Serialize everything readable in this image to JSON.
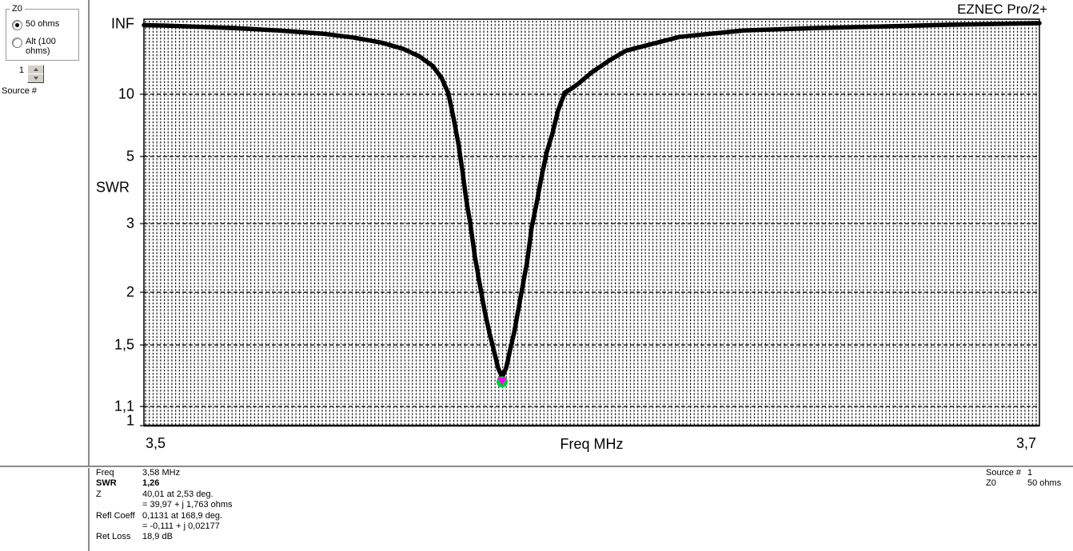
{
  "brand": {
    "title": "EZNEC Pro/2+"
  },
  "left_panel": {
    "z0_group": {
      "title": "Z0",
      "options": [
        {
          "label": "50 ohms",
          "selected": true
        },
        {
          "label": "Alt (100 ohms)",
          "selected": false
        }
      ]
    },
    "source_spinner": {
      "value": "1",
      "label": "Source #"
    }
  },
  "chart_data": {
    "type": "line",
    "title": "",
    "xlabel": "Freq MHz",
    "ylabel": "SWR",
    "xlim": [
      3.5,
      3.7
    ],
    "x_ticks": [
      {
        "label": "3,5",
        "value": 3.5
      },
      {
        "label": "3,7",
        "value": 3.7
      }
    ],
    "y_ticks": [
      {
        "label": "INF",
        "value": 100,
        "gridline": false
      },
      {
        "label": "10",
        "value": 10,
        "gridline": true
      },
      {
        "label": "5",
        "value": 5,
        "gridline": true
      },
      {
        "label": "3",
        "value": 3,
        "gridline": true
      },
      {
        "label": "2",
        "value": 2,
        "gridline": true
      },
      {
        "label": "1,5",
        "value": 1.5,
        "gridline": true
      },
      {
        "label": "1,1",
        "value": 1.1,
        "gridline": true
      },
      {
        "label": "1",
        "value": 1,
        "gridline": false
      }
    ],
    "grid_style": "fine dotted vertical columns, dashed major horizontal gridlines",
    "series": [
      {
        "name": "SWR vs Frequency",
        "color": "#000000",
        "points": [
          [
            3.5,
            95.5
          ],
          [
            3.505,
            95
          ],
          [
            3.51,
            94
          ],
          [
            3.52,
            92
          ],
          [
            3.53,
            89
          ],
          [
            3.54,
            85
          ],
          [
            3.547,
            80
          ],
          [
            3.553,
            74
          ],
          [
            3.558,
            66
          ],
          [
            3.5615,
            57
          ],
          [
            3.5645,
            45
          ],
          [
            3.5665,
            30
          ],
          [
            3.568,
            11
          ],
          [
            3.5692,
            8.0
          ],
          [
            3.5702,
            6.1
          ],
          [
            3.5711,
            4.6
          ],
          [
            3.572,
            3.7
          ],
          [
            3.5729,
            3.0
          ],
          [
            3.5739,
            2.53
          ],
          [
            3.575,
            2.12
          ],
          [
            3.5761,
            1.82
          ],
          [
            3.5772,
            1.61
          ],
          [
            3.5782,
            1.46
          ],
          [
            3.5791,
            1.35
          ],
          [
            3.58,
            1.29
          ],
          [
            3.5809,
            1.35
          ],
          [
            3.5818,
            1.47
          ],
          [
            3.5827,
            1.62
          ],
          [
            3.5836,
            1.83
          ],
          [
            3.5846,
            2.1
          ],
          [
            3.5856,
            2.45
          ],
          [
            3.5866,
            2.95
          ],
          [
            3.5877,
            3.6
          ],
          [
            3.5888,
            4.4
          ],
          [
            3.59,
            5.4
          ],
          [
            3.5912,
            6.8
          ],
          [
            3.5925,
            8.7
          ],
          [
            3.594,
            12
          ],
          [
            3.5955,
            17
          ],
          [
            3.597,
            23
          ],
          [
            3.6,
            37
          ],
          [
            3.604,
            52
          ],
          [
            3.6077,
            64
          ],
          [
            3.6196,
            81
          ],
          [
            3.634,
            89
          ],
          [
            3.65,
            92
          ],
          [
            3.665,
            94
          ],
          [
            3.68,
            96
          ],
          [
            3.7,
            98
          ]
        ]
      }
    ],
    "marker": {
      "freq": 3.58,
      "swr": 1.26,
      "outer_color": "#00CC33",
      "inner_color": "#FF00FF"
    }
  },
  "readout": {
    "rows": [
      {
        "label": "Freq",
        "value": "3,58 MHz",
        "bold": false
      },
      {
        "label": "SWR",
        "value": "1,26",
        "bold": true
      },
      {
        "label": "Z",
        "value": "40,01 at 2,53 deg.",
        "bold": false
      },
      {
        "label": "",
        "value": "= 39,97 + j 1,763 ohms",
        "bold": false
      },
      {
        "label": "Refl Coeff",
        "value": "0,1131 at 168,9 deg.",
        "bold": false
      },
      {
        "label": "",
        "value": "= -0,111 + j 0,02177",
        "bold": false
      },
      {
        "label": "Ret Loss",
        "value": "18,9 dB",
        "bold": false
      }
    ],
    "right_rows": [
      {
        "label": "Source #",
        "value": "1"
      },
      {
        "label": "Z0",
        "value": "50 ohms"
      }
    ]
  }
}
